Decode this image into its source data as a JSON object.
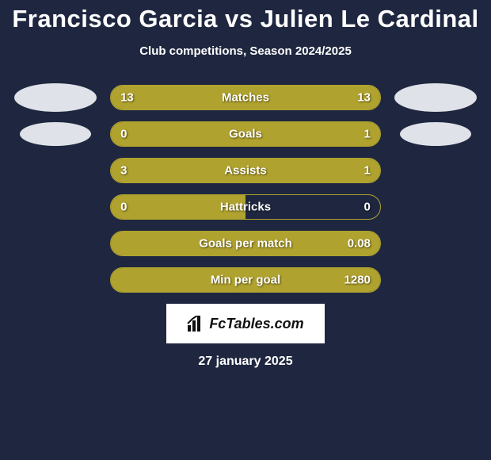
{
  "title": "Francisco Garcia vs Julien Le Cardinal",
  "subtitle": "Club competitions, Season 2024/2025",
  "date": "27 january 2025",
  "colors": {
    "background": "#1f2740",
    "bar_fill": "#b0a22e",
    "bar_border": "#b0a22e",
    "text": "#ffffff",
    "avatar_fill": "#dfe2e8",
    "badge_bg": "#ffffff",
    "badge_text": "#111111"
  },
  "avatars": {
    "left1": {
      "w": 104,
      "h": 36
    },
    "right1": {
      "w": 104,
      "h": 36
    },
    "left2": {
      "w": 90,
      "h": 30
    },
    "right2": {
      "w": 90,
      "h": 30
    }
  },
  "stats": [
    {
      "label": "Matches",
      "left_val": "13",
      "right_val": "13",
      "left_pct": 50,
      "right_pct": 50,
      "show_left_avatar": true,
      "show_right_avatar": true
    },
    {
      "label": "Goals",
      "left_val": "0",
      "right_val": "1",
      "left_pct": 20,
      "right_pct": 80,
      "show_left_avatar": true,
      "show_right_avatar": true
    },
    {
      "label": "Assists",
      "left_val": "3",
      "right_val": "1",
      "left_pct": 75,
      "right_pct": 25,
      "show_left_avatar": false,
      "show_right_avatar": false
    },
    {
      "label": "Hattricks",
      "left_val": "0",
      "right_val": "0",
      "left_pct": 50,
      "right_pct": 0,
      "show_left_avatar": false,
      "show_right_avatar": false
    },
    {
      "label": "Goals per match",
      "left_val": "",
      "right_val": "0.08",
      "left_pct": 100,
      "right_pct": 0,
      "show_left_avatar": false,
      "show_right_avatar": false
    },
    {
      "label": "Min per goal",
      "left_val": "",
      "right_val": "1280",
      "left_pct": 100,
      "right_pct": 0,
      "show_left_avatar": false,
      "show_right_avatar": false
    }
  ],
  "logo_text": "FcTables.com"
}
